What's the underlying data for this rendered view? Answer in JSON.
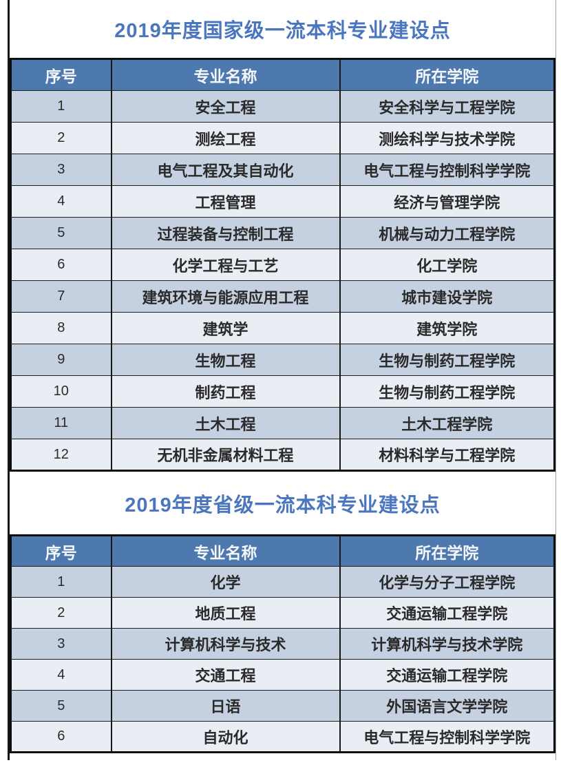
{
  "colors": {
    "title_text": "#4a76bf",
    "header_bg": "#4d79ae",
    "header_text": "#f4f7fb",
    "row_odd_bg": "#c5d1e1",
    "row_even_bg": "#e9edf4",
    "cell_text": "#2a2a2a"
  },
  "tables": [
    {
      "title": "2019年度国家级一流本科专业建设点",
      "columns": [
        "序号",
        "专业名称",
        "所在学院"
      ],
      "rows": [
        [
          "1",
          "安全工程",
          "安全科学与工程学院"
        ],
        [
          "2",
          "测绘工程",
          "测绘科学与技术学院"
        ],
        [
          "3",
          "电气工程及其自动化",
          "电气工程与控制科学学院"
        ],
        [
          "4",
          "工程管理",
          "经济与管理学院"
        ],
        [
          "5",
          "过程装备与控制工程",
          "机械与动力工程学院"
        ],
        [
          "6",
          "化学工程与工艺",
          "化工学院"
        ],
        [
          "7",
          "建筑环境与能源应用工程",
          "城市建设学院"
        ],
        [
          "8",
          "建筑学",
          "建筑学院"
        ],
        [
          "9",
          "生物工程",
          "生物与制药工程学院"
        ],
        [
          "10",
          "制药工程",
          "生物与制药工程学院"
        ],
        [
          "11",
          "土木工程",
          "土木工程学院"
        ],
        [
          "12",
          "无机非金属材料工程",
          "材料科学与工程学院"
        ]
      ]
    },
    {
      "title": "2019年度省级一流本科专业建设点",
      "columns": [
        "序号",
        "专业名称",
        "所在学院"
      ],
      "rows": [
        [
          "1",
          "化学",
          "化学与分子工程学院"
        ],
        [
          "2",
          "地质工程",
          "交通运输工程学院"
        ],
        [
          "3",
          "计算机科学与技术",
          "计算机科学与技术学院"
        ],
        [
          "4",
          "交通工程",
          "交通运输工程学院"
        ],
        [
          "5",
          "日语",
          "外国语言文学学院"
        ],
        [
          "6",
          "自动化",
          "电气工程与控制科学学院"
        ]
      ]
    }
  ]
}
